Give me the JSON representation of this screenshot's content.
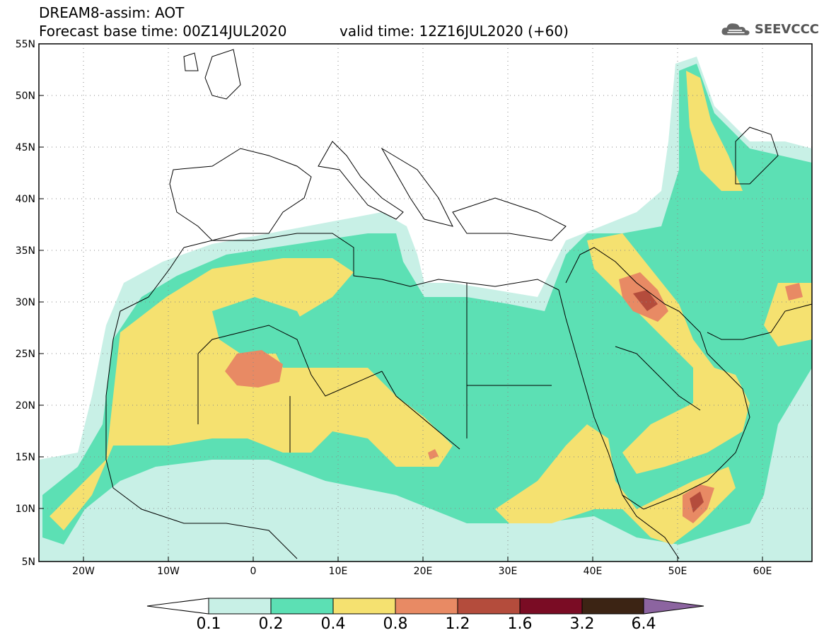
{
  "header": {
    "line1": "DREAM8-assim: AOT",
    "line2": "Forecast base time: 00Z14JUL2020",
    "valid": "valid time: 12Z16JUL2020 (+60)"
  },
  "logo": {
    "text": "SEEVCCC",
    "icon": "cloud-icon"
  },
  "axes": {
    "lat_labels": [
      "55N",
      "50N",
      "45N",
      "40N",
      "35N",
      "30N",
      "25N",
      "20N",
      "15N",
      "10N",
      "5N"
    ],
    "lon_labels": [
      "20W",
      "10W",
      "0",
      "10E",
      "20E",
      "30E",
      "40E",
      "50E",
      "60E"
    ]
  },
  "colorbar": {
    "labels": [
      "0.1",
      "0.2",
      "0.4",
      "0.8",
      "1.2",
      "1.6",
      "3.2",
      "6.4"
    ],
    "colors": [
      "#ffffff",
      "#c8f0e6",
      "#5ce0b4",
      "#f5e170",
      "#e88a64",
      "#b44c3c",
      "#7a0c24",
      "#3c2414",
      "#8c64a0"
    ]
  },
  "palette": {
    "c1": "#c8f0e6",
    "c2": "#5ce0b4",
    "c3": "#f5e170",
    "c4": "#e88a64",
    "c5": "#b44c3c",
    "c6": "#7a0c24"
  }
}
